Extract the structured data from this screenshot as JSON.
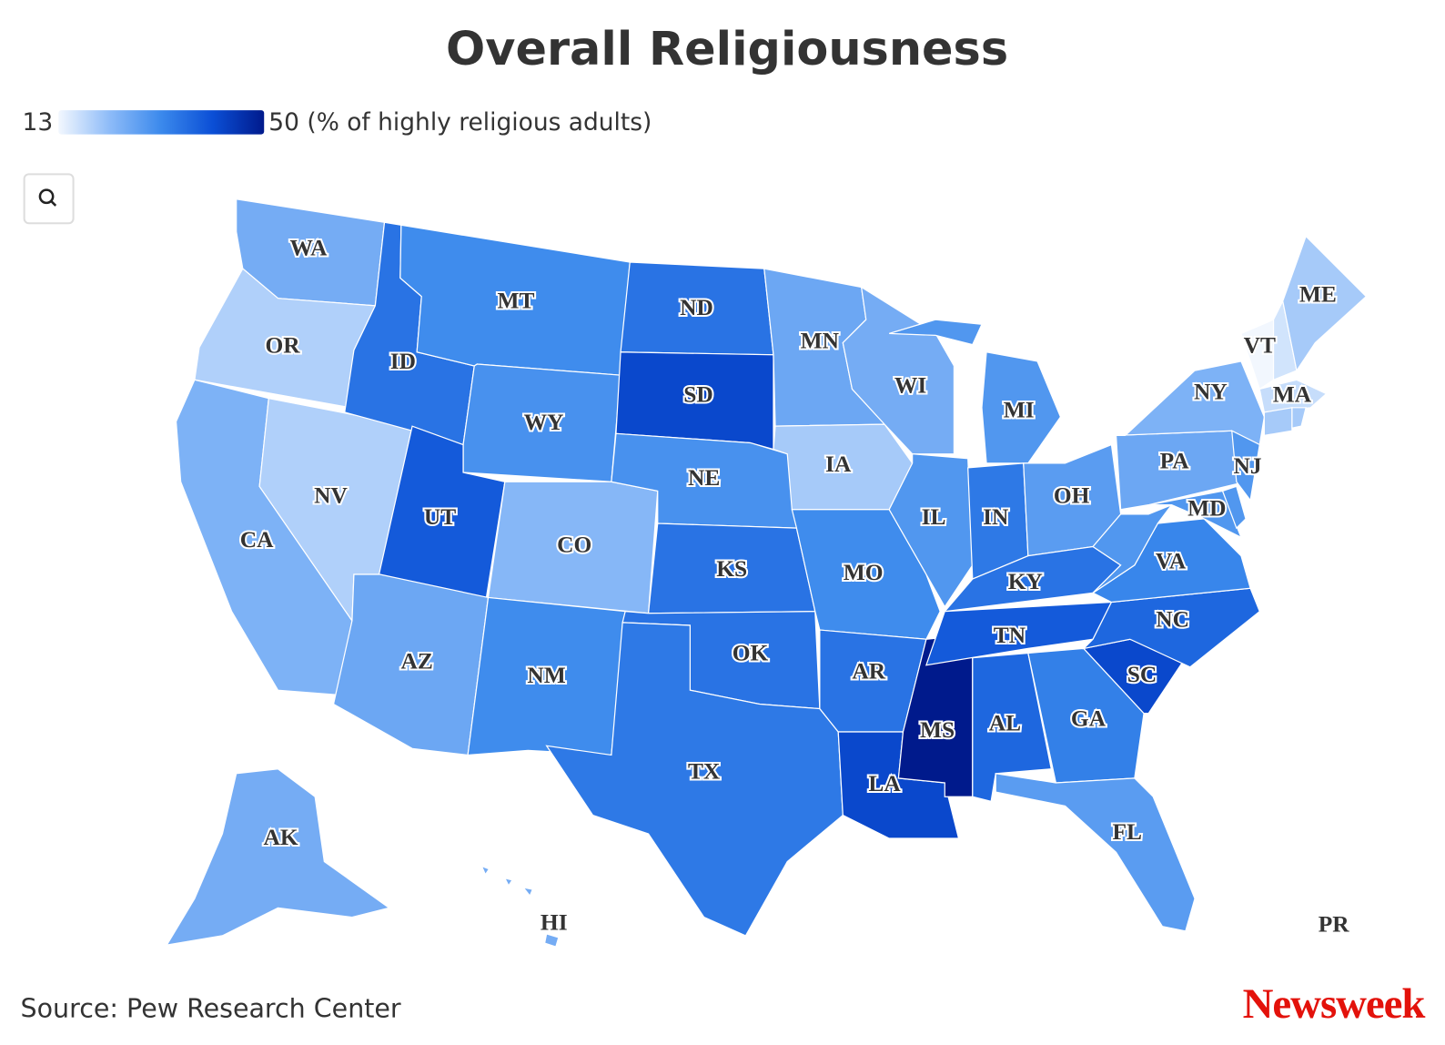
{
  "map": {
    "type": "choropleth",
    "title": "Overall Religiousness",
    "legend": {
      "range": [
        13,
        50
      ],
      "ticks": [
        13,
        {
          "value": 50,
          "label": "50 (% of highly religious adults)"
        }
      ],
      "colors": [
        "#f2f7fe",
        "#8dbbf8",
        "#3b89ec",
        "#0b4fd6",
        "#001a8c"
      ]
    },
    "states": [
      {
        "label": "WA",
        "value": 25
      },
      {
        "label": "OR",
        "value": 19
      },
      {
        "label": "CA",
        "value": 24
      },
      {
        "label": "NV",
        "value": 19
      },
      {
        "label": "ID",
        "value": 35
      },
      {
        "label": "MT",
        "value": 31
      },
      {
        "label": "WY",
        "value": 30
      },
      {
        "label": "UT",
        "value": 39
      },
      {
        "label": "CO",
        "value": 23
      },
      {
        "label": "AZ",
        "value": 26
      },
      {
        "label": "NM",
        "value": 31
      },
      {
        "label": "ND",
        "value": 35
      },
      {
        "label": "SD",
        "value": 42
      },
      {
        "label": "NE",
        "value": 30
      },
      {
        "label": "KS",
        "value": 35
      },
      {
        "label": "OK",
        "value": 35
      },
      {
        "label": "TX",
        "value": 34
      },
      {
        "label": "MN",
        "value": 26
      },
      {
        "label": "IA",
        "value": 20
      },
      {
        "label": "MO",
        "value": 31
      },
      {
        "label": "AR",
        "value": 35
      },
      {
        "label": "LA",
        "value": 42
      },
      {
        "label": "MS",
        "value": 50
      },
      {
        "label": "WI",
        "value": 25
      },
      {
        "label": "IL",
        "value": 29
      },
      {
        "label": "MI",
        "value": 29
      },
      {
        "label": "IN",
        "value": 34
      },
      {
        "label": "OH",
        "value": 28
      },
      {
        "label": "KY",
        "value": 35
      },
      {
        "label": "TN",
        "value": 39
      },
      {
        "label": "AL",
        "value": 37
      },
      {
        "label": "GA",
        "value": 33
      },
      {
        "label": "FL",
        "value": 28
      },
      {
        "label": "SC",
        "value": 42
      },
      {
        "label": "NC",
        "value": 37
      },
      {
        "label": "VA",
        "value": 32
      },
      {
        "label": null,
        "value": 29
      },
      {
        "label": "PA",
        "value": 26
      },
      {
        "label": "NY",
        "value": 24
      },
      {
        "label": "NJ",
        "value": 29
      },
      {
        "label": "MD",
        "value": 29
      },
      {
        "label": null,
        "value": 29
      },
      {
        "label": "VT",
        "value": 13
      },
      {
        "label": null,
        "value": 16
      },
      {
        "label": "ME",
        "value": 20
      },
      {
        "label": "MA",
        "value": 17
      },
      {
        "label": null,
        "value": 20
      },
      {
        "label": null,
        "value": 20
      },
      {
        "label": "AK",
        "value": 25
      },
      {
        "label": "HI",
        "value": 25
      },
      {
        "label": "PR",
        "value": null
      }
    ],
    "source": "Source: Pew Research Center",
    "brand": "Newsweek"
  }
}
